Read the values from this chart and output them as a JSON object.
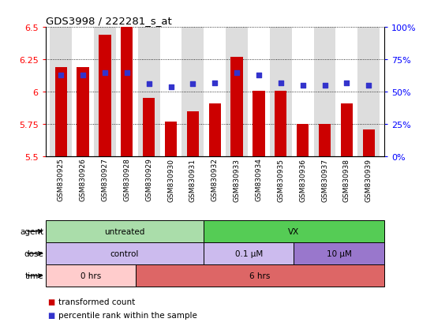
{
  "title": "GDS3998 / 222281_s_at",
  "samples": [
    "GSM830925",
    "GSM830926",
    "GSM830927",
    "GSM830928",
    "GSM830929",
    "GSM830930",
    "GSM830931",
    "GSM830932",
    "GSM830933",
    "GSM830934",
    "GSM830935",
    "GSM830936",
    "GSM830937",
    "GSM830938",
    "GSM830939"
  ],
  "bar_values": [
    6.19,
    6.19,
    6.44,
    6.5,
    5.95,
    5.77,
    5.85,
    5.91,
    6.27,
    6.01,
    6.01,
    5.75,
    5.75,
    5.91,
    5.71
  ],
  "percentile_values": [
    63,
    63,
    65,
    65,
    56,
    54,
    56,
    57,
    65,
    63,
    57,
    55,
    55,
    57,
    55
  ],
  "ylim_left": [
    5.5,
    6.5
  ],
  "ylim_right": [
    0,
    100
  ],
  "yticks_left": [
    5.5,
    5.75,
    6.0,
    6.25,
    6.5
  ],
  "yticks_right": [
    0,
    25,
    50,
    75,
    100
  ],
  "ytick_labels_left": [
    "5.5",
    "5.75",
    "6",
    "6.25",
    "6.5"
  ],
  "ytick_labels_right": [
    "0%",
    "25%",
    "50%",
    "75%",
    "100%"
  ],
  "bar_color": "#cc0000",
  "dot_color": "#3333cc",
  "bg_color": "#ffffff",
  "col_bg_even": "#dddddd",
  "col_bg_odd": "#ffffff",
  "agent_row": {
    "label": "agent",
    "segments": [
      {
        "text": "untreated",
        "start": 0,
        "end": 7,
        "color": "#aaddaa"
      },
      {
        "text": "VX",
        "start": 7,
        "end": 15,
        "color": "#55cc55"
      }
    ]
  },
  "dose_row": {
    "label": "dose",
    "segments": [
      {
        "text": "control",
        "start": 0,
        "end": 7,
        "color": "#ccbbee"
      },
      {
        "text": "0.1 μM",
        "start": 7,
        "end": 11,
        "color": "#ccbbee"
      },
      {
        "text": "10 μM",
        "start": 11,
        "end": 15,
        "color": "#9977cc"
      }
    ]
  },
  "time_row": {
    "label": "time",
    "segments": [
      {
        "text": "0 hrs",
        "start": 0,
        "end": 4,
        "color": "#ffcccc"
      },
      {
        "text": "6 hrs",
        "start": 4,
        "end": 15,
        "color": "#dd6666"
      }
    ]
  },
  "legend_items": [
    {
      "color": "#cc0000",
      "label": "transformed count"
    },
    {
      "color": "#3333cc",
      "label": "percentile rank within the sample"
    }
  ]
}
